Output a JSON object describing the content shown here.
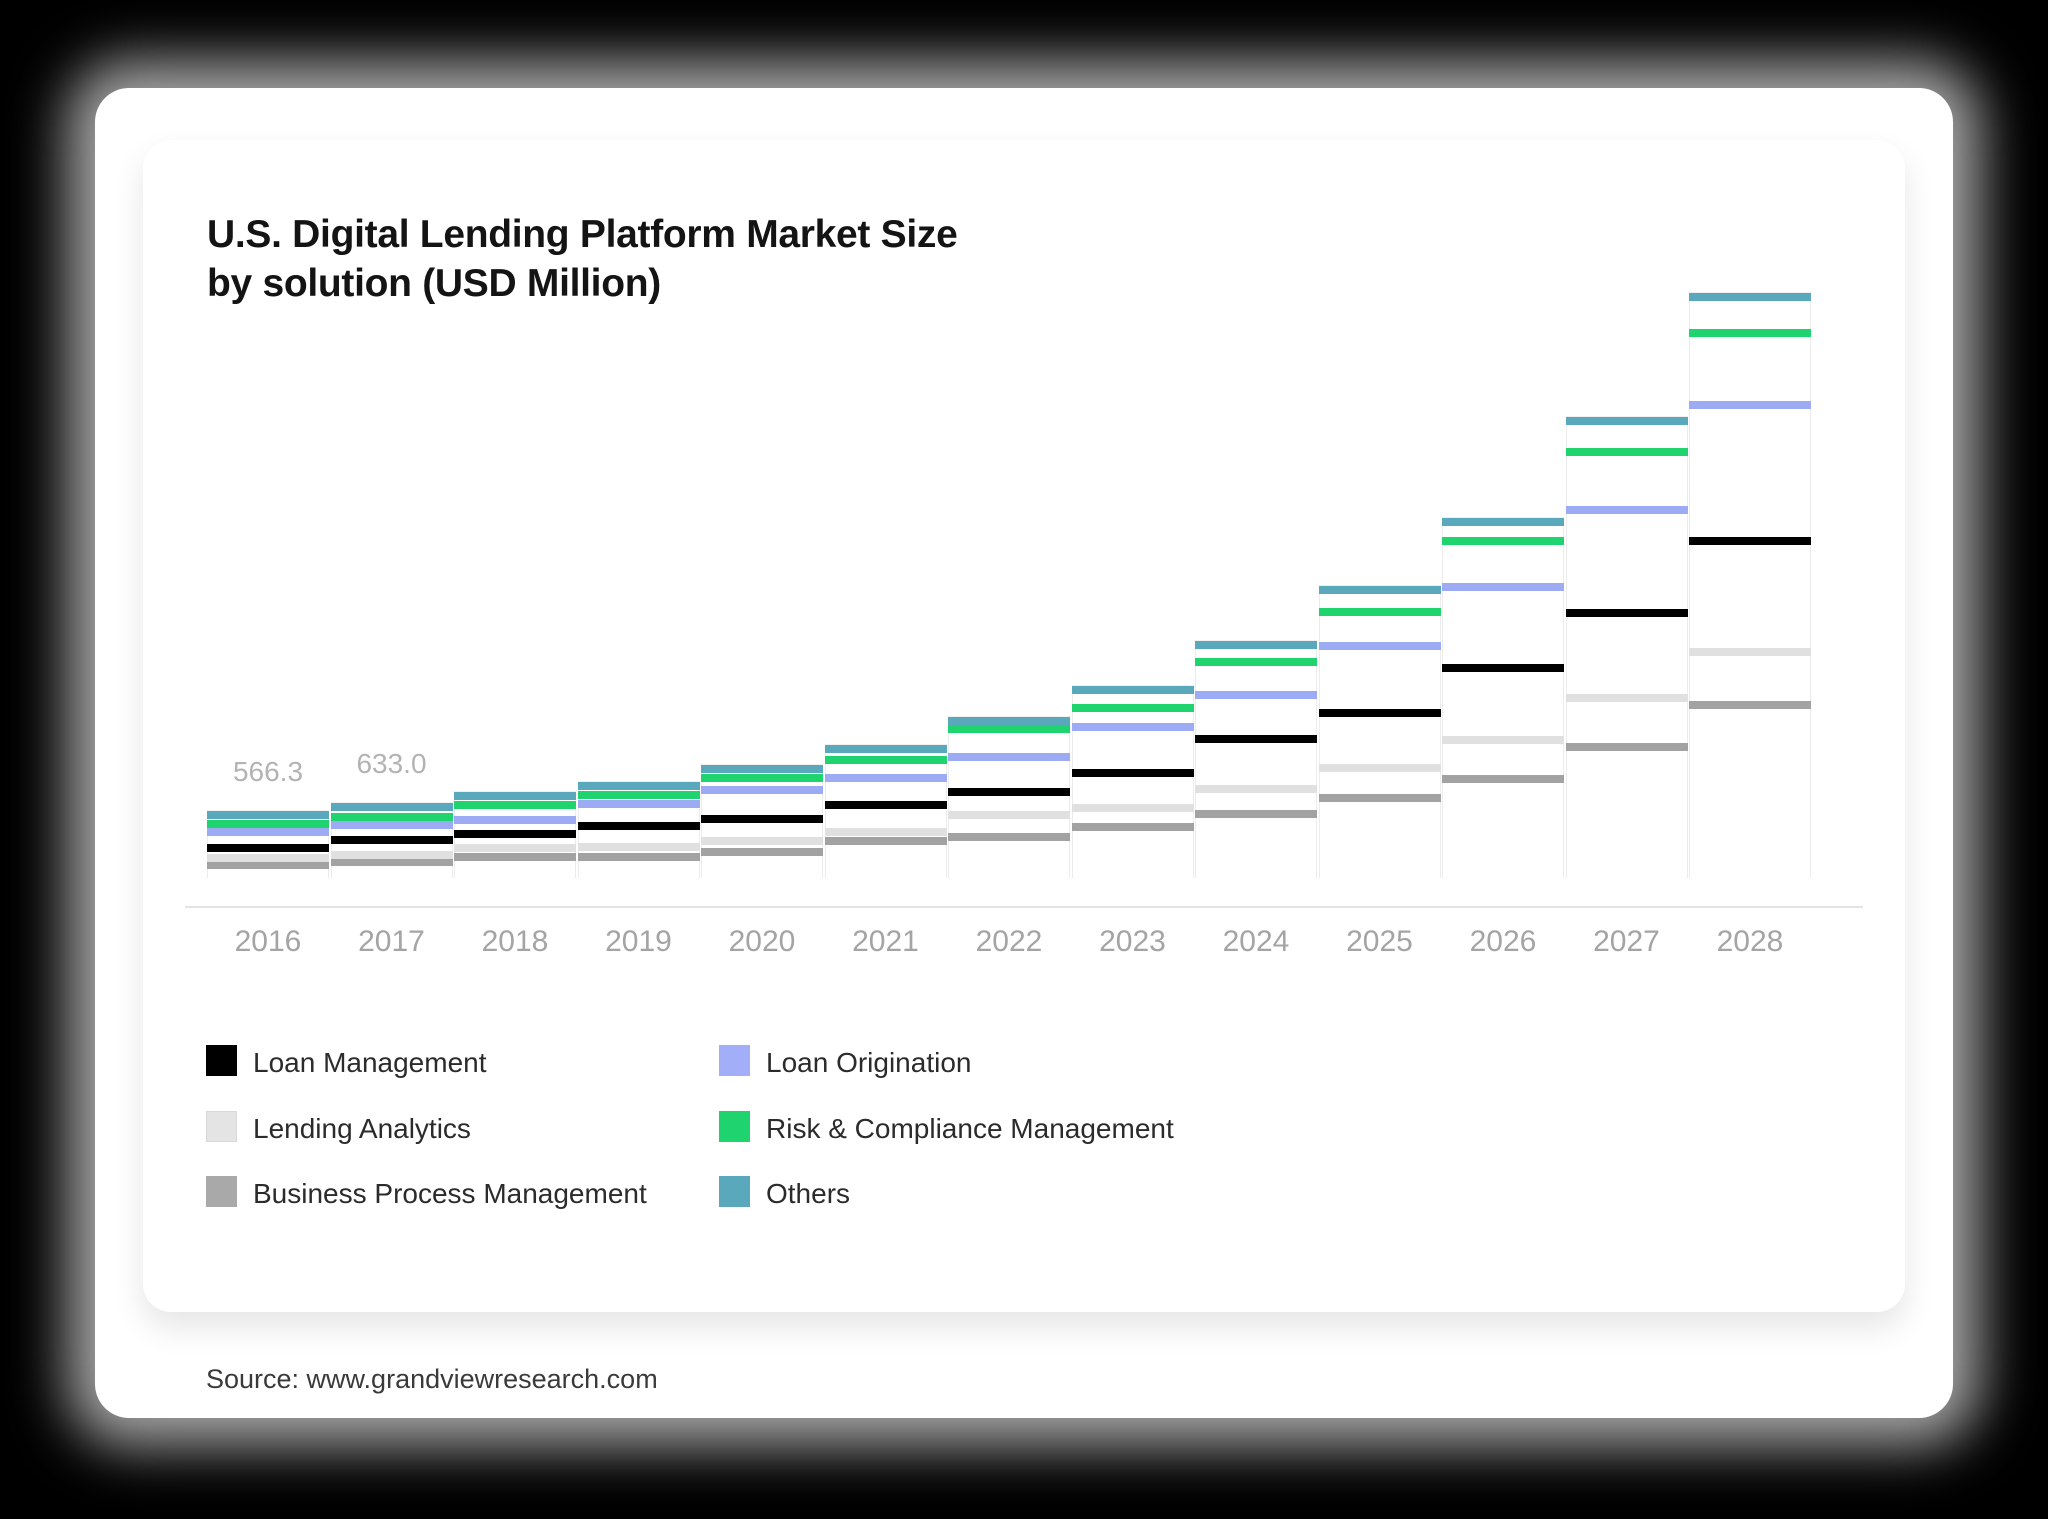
{
  "title": {
    "line1": "U.S. Digital Lending Platform Market Size",
    "line2": "by solution (USD Million)"
  },
  "source": "Source: www.grandviewresearch.com",
  "colors": {
    "loan_management": "#000000",
    "loan_origination": "#9dabf5",
    "lending_analytics": "#e0e0e0",
    "risk_compliance": "#1fd36f",
    "business_process": "#a2a2a2",
    "others": "#5aa8bb",
    "axis_line": "#e4e4e4",
    "year_label": "#a4a4a4",
    "data_label": "#b3b3b3"
  },
  "chart_data": {
    "type": "bar",
    "stacked": true,
    "unit": "USD Million",
    "title": "U.S. Digital Lending Platform Market Size by solution (USD Million)",
    "xlabel": "",
    "ylabel": "",
    "grid": false,
    "legend_position": "bottom",
    "bar_style": "white bar body with a colored stripe marking the top of each stacked segment",
    "categories": [
      "2016",
      "2017",
      "2018",
      "2019",
      "2020",
      "2021",
      "2022",
      "2023",
      "2024",
      "2025",
      "2026",
      "2027",
      "2028"
    ],
    "series": [
      {
        "name": "Business Process Management",
        "color": "#a2a2a2",
        "values": [
          150,
          175,
          217,
          217,
          258,
          350,
          383,
          467,
          575,
          708,
          867,
          1133,
          1483
        ]
      },
      {
        "name": "Lending Analytics",
        "color": "#e0e0e0",
        "values": [
          58,
          58,
          75,
          83,
          92,
          75,
          183,
          158,
          208,
          250,
          325,
          408,
          442
        ]
      },
      {
        "name": "Loan Management",
        "color": "#000000",
        "values": [
          83,
          125,
          117,
          175,
          183,
          225,
          192,
          292,
          417,
          458,
          600,
          708,
          925
        ]
      },
      {
        "name": "Loan Origination",
        "color": "#9dabf5",
        "values": [
          133,
          125,
          117,
          183,
          242,
          225,
          292,
          383,
          367,
          558,
          675,
          858,
          1133
        ]
      },
      {
        "name": "Risk & Compliance Management",
        "color": "#1fd36f",
        "values": [
          67,
          67,
          125,
          75,
          100,
          150,
          233,
          158,
          275,
          283,
          383,
          483,
          600
        ]
      },
      {
        "name": "Others",
        "color": "#5aa8bb",
        "values": [
          75,
          83,
          75,
          75,
          75,
          92,
          67,
          150,
          142,
          183,
          158,
          258,
          300
        ]
      }
    ],
    "totals_estimated": [
      566.3,
      633.0,
      726,
      808,
      950,
      1117,
      1350,
      1608,
      1984,
      2440,
      3008,
      3848,
      4883
    ],
    "data_labels": [
      {
        "category": "2016",
        "text": "566.3"
      },
      {
        "category": "2017",
        "text": "633.0"
      }
    ]
  },
  "legend": {
    "columns": [
      [
        {
          "label": "Loan Management",
          "color": "#000000",
          "bordered": false
        },
        {
          "label": "Lending Analytics",
          "color": "#e4e4e4",
          "bordered": true
        },
        {
          "label": "Business Process Management",
          "color": "#a9a9a9",
          "bordered": false
        }
      ],
      [
        {
          "label": "Loan Origination",
          "color": "#a2aef8",
          "bordered": false
        },
        {
          "label": "Risk & Compliance Management",
          "color": "#1fd36f",
          "bordered": false
        },
        {
          "label": "Others",
          "color": "#5aa8bb",
          "bordered": false
        }
      ]
    ]
  }
}
